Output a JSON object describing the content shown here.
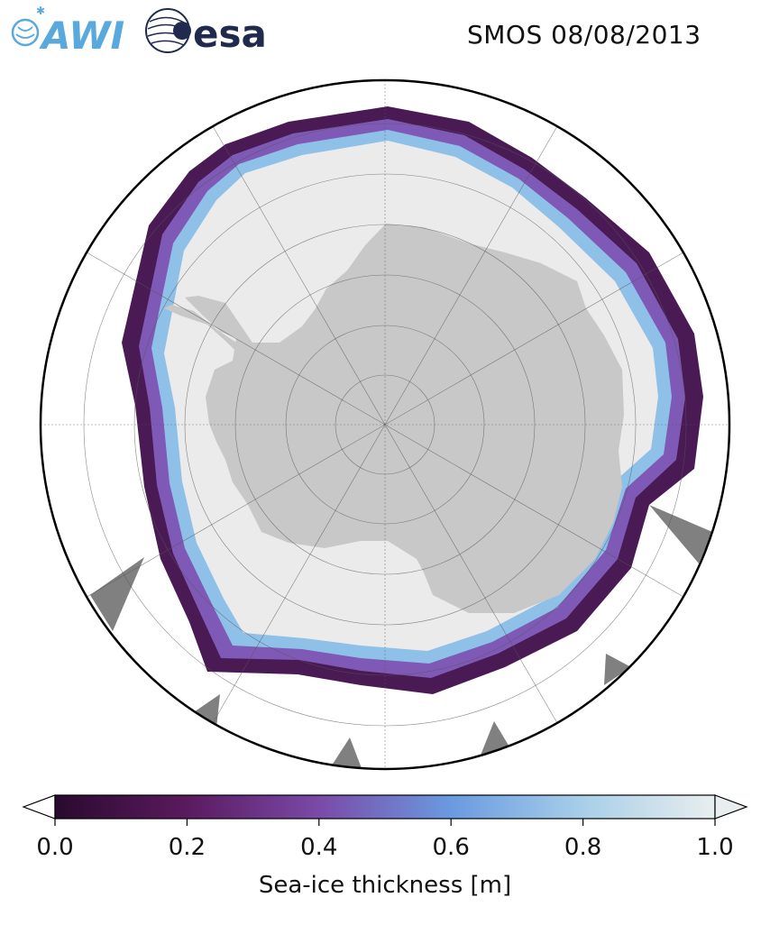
{
  "header": {
    "awi_logo_text": "AWI",
    "esa_logo_text": "esa",
    "title": "SMOS 08/08/2013"
  },
  "map": {
    "projection": "south-polar-stereographic",
    "land_color": "#c8c8c8",
    "thick_ice_color": "#ebebeb",
    "ocean_color": "#ffffff",
    "no_data_color": "#808080",
    "graticule": true
  },
  "colorbar": {
    "label": "Sea-ice thickness [m]",
    "ticks": [
      "0.0",
      "0.2",
      "0.4",
      "0.6",
      "0.8",
      "1.0"
    ],
    "range": [
      0.0,
      1.0
    ],
    "extend": "both",
    "colormap_stops": [
      "#2a0a2e",
      "#5a1a5e",
      "#7a4aa8",
      "#6a9ae0",
      "#a8cfe8",
      "#e8eeee"
    ]
  }
}
